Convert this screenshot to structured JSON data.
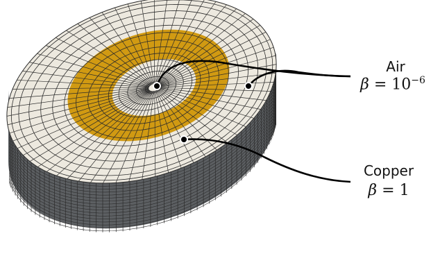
{
  "labels": {
    "air": {
      "name": "Air",
      "beta_symbol": "β",
      "equals": " = ",
      "base": "10",
      "exponent": "−6"
    },
    "copper": {
      "name": "Copper",
      "beta_symbol": "β",
      "equals": " = ",
      "value": "1"
    }
  },
  "colors": {
    "air_face": "#ede9df",
    "copper_face": "#d19a12",
    "side": "#5c5f62",
    "mesh_line": "#2b2b2b",
    "leader": "#000000"
  }
}
